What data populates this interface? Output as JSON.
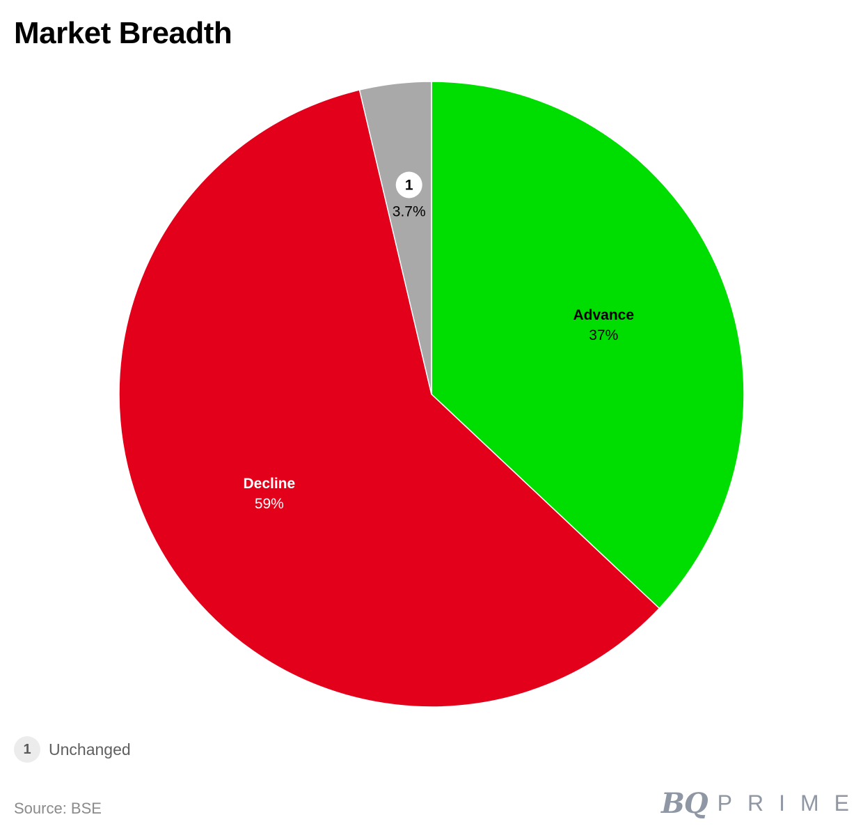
{
  "title": "Market Breadth",
  "chart_data": {
    "type": "pie",
    "title": "Market Breadth",
    "slices": [
      {
        "name": "Advance",
        "label": "Advance",
        "value": 37,
        "display": "37%",
        "color": "#00dd00",
        "label_color": "#000000"
      },
      {
        "name": "Decline",
        "label": "Decline",
        "value": 59.3,
        "display": "59%",
        "color": "#e3001b",
        "label_color": "#ffffff"
      },
      {
        "name": "Unchanged",
        "label": "1",
        "value": 3.7,
        "display": "3.7%",
        "color": "#a9a9a9",
        "label_color": "#000000",
        "badge": true
      }
    ],
    "start": "top",
    "direction": "clockwise",
    "legend": {
      "placement": "bottom-left",
      "items": [
        {
          "badge": "1",
          "label": "Unchanged"
        }
      ]
    }
  },
  "legend": {
    "badge": "1",
    "label": "Unchanged"
  },
  "source": "Source: BSE",
  "logo": {
    "bq": "BQ",
    "prime": "PRIME"
  }
}
